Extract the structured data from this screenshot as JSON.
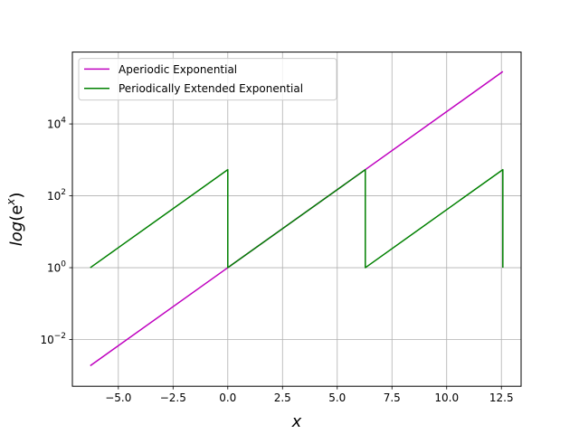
{
  "chart_data": {
    "type": "line",
    "xlabel": "x",
    "ylabel": "log(e^x)",
    "xlim": [
      -7.1,
      13.4
    ],
    "ylim_log10": [
      -3.3,
      6.0
    ],
    "y_scale": "log",
    "grid": true,
    "legend_position": "upper-left",
    "x_ticks": [
      -5.0,
      -2.5,
      0.0,
      2.5,
      5.0,
      7.5,
      10.0,
      12.5
    ],
    "x_tick_labels": [
      "−5.0",
      "−2.5",
      "0.0",
      "2.5",
      "5.0",
      "7.5",
      "10.0",
      "12.5"
    ],
    "y_ticks": [
      {
        "base": "10",
        "exp": "−2",
        "log10": -2
      },
      {
        "base": "10",
        "exp": "0",
        "log10": 0
      },
      {
        "base": "10",
        "exp": "2",
        "log10": 2
      },
      {
        "base": "10",
        "exp": "4",
        "log10": 4
      }
    ],
    "series": [
      {
        "name": "Aperiodic Exponential",
        "color": "#bf00bf",
        "x": [
          -6.283,
          12.566
        ],
        "y": [
          0.00187,
          286751
        ]
      },
      {
        "name": "Periodically Extended Exponential",
        "color": "#008000",
        "x": [
          -6.283,
          0.0,
          0.0,
          6.283,
          6.283,
          12.566,
          12.566
        ],
        "y": [
          1.0,
          535.49,
          1.0,
          535.49,
          1.0,
          535.49,
          1.0
        ]
      }
    ]
  }
}
